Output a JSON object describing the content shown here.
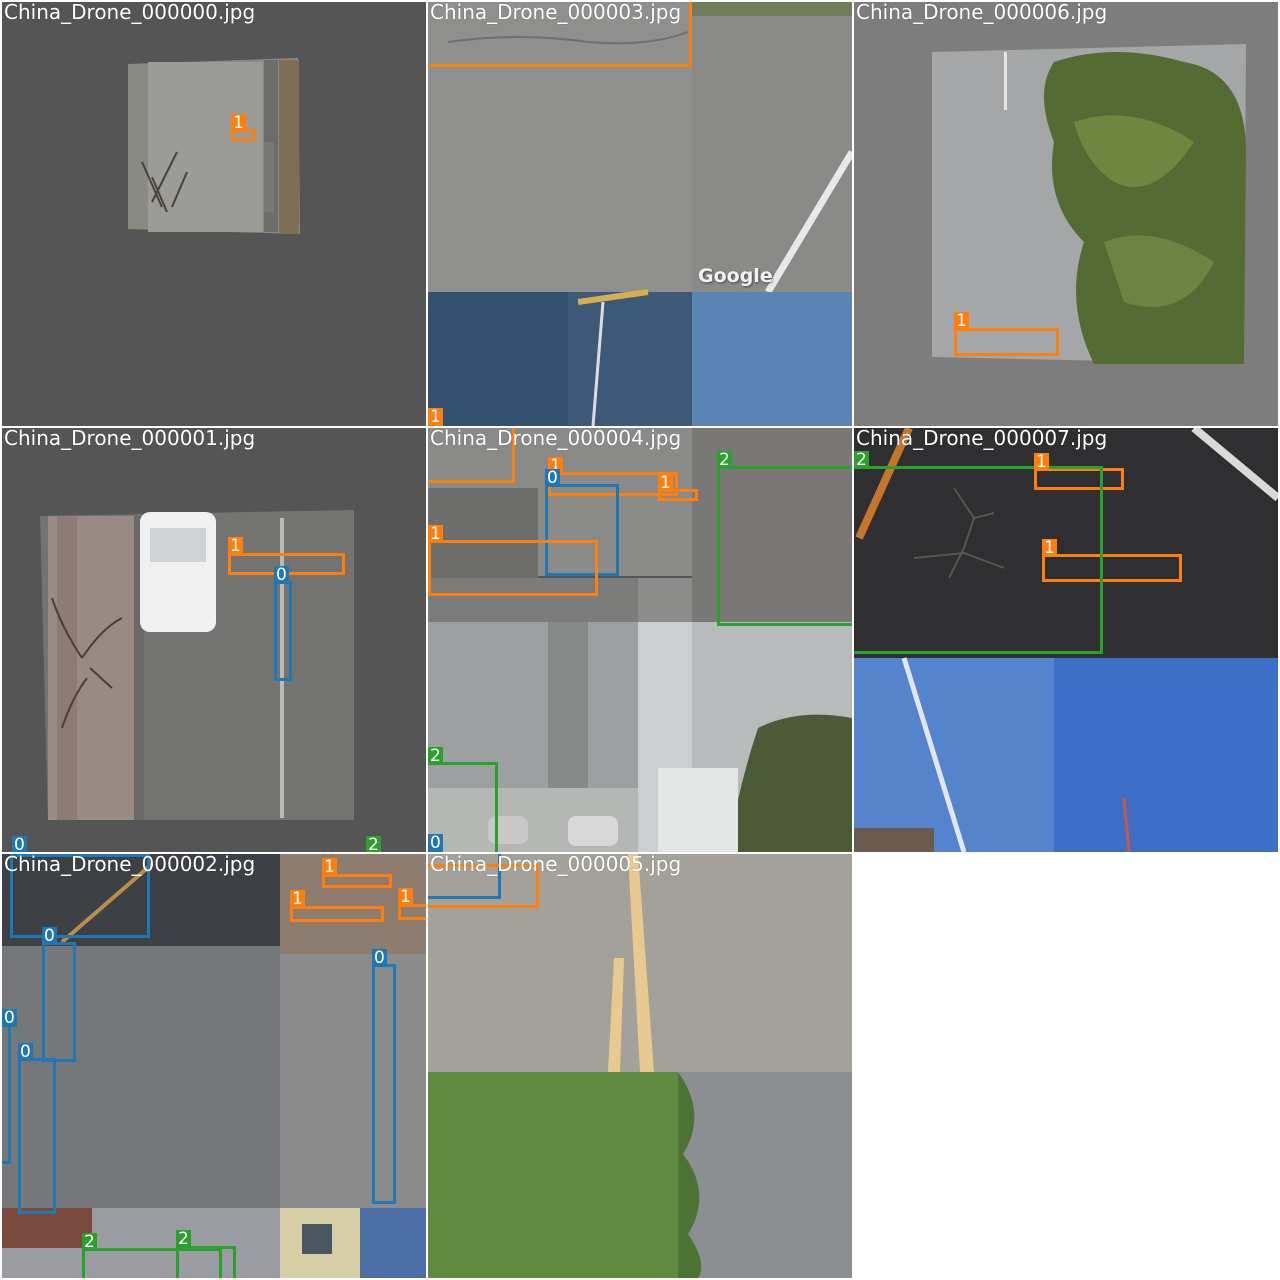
{
  "mosaic": {
    "tiles": [
      {
        "id": "t0",
        "caption": "China_Drone_000000.jpg"
      },
      {
        "id": "t3",
        "caption": "China_Drone_000003.jpg"
      },
      {
        "id": "t6",
        "caption": "China_Drone_000006.jpg"
      },
      {
        "id": "t1",
        "caption": "China_Drone_000001.jpg"
      },
      {
        "id": "t4",
        "caption": "China_Drone_000004.jpg"
      },
      {
        "id": "t7",
        "caption": "China_Drone_000007.jpg"
      },
      {
        "id": "t2",
        "caption": "China_Drone_000002.jpg"
      },
      {
        "id": "t5",
        "caption": "China_Drone_000005.jpg"
      }
    ],
    "class_colors": {
      "0": "#1f77b4",
      "1": "#ff7f0e",
      "2": "#2ca02c"
    },
    "labels": {
      "c0": "0",
      "c1": "1",
      "c2": "2"
    },
    "watermark": "Google"
  }
}
